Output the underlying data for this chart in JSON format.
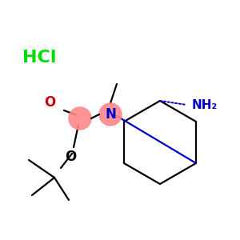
{
  "background_color": "#ffffff",
  "hcl_text": "HCl",
  "hcl_color": "#00dd00",
  "hcl_fontsize": 16,
  "n_label": "N",
  "n_color": "#0000cc",
  "nh2_label": "NH₂",
  "nh2_color": "#0000cc",
  "o_double_label": "O",
  "o_double_color": "#cc0000",
  "o_single_label": "O",
  "highlight_color": "#ff8888",
  "highlight_alpha": 0.9
}
